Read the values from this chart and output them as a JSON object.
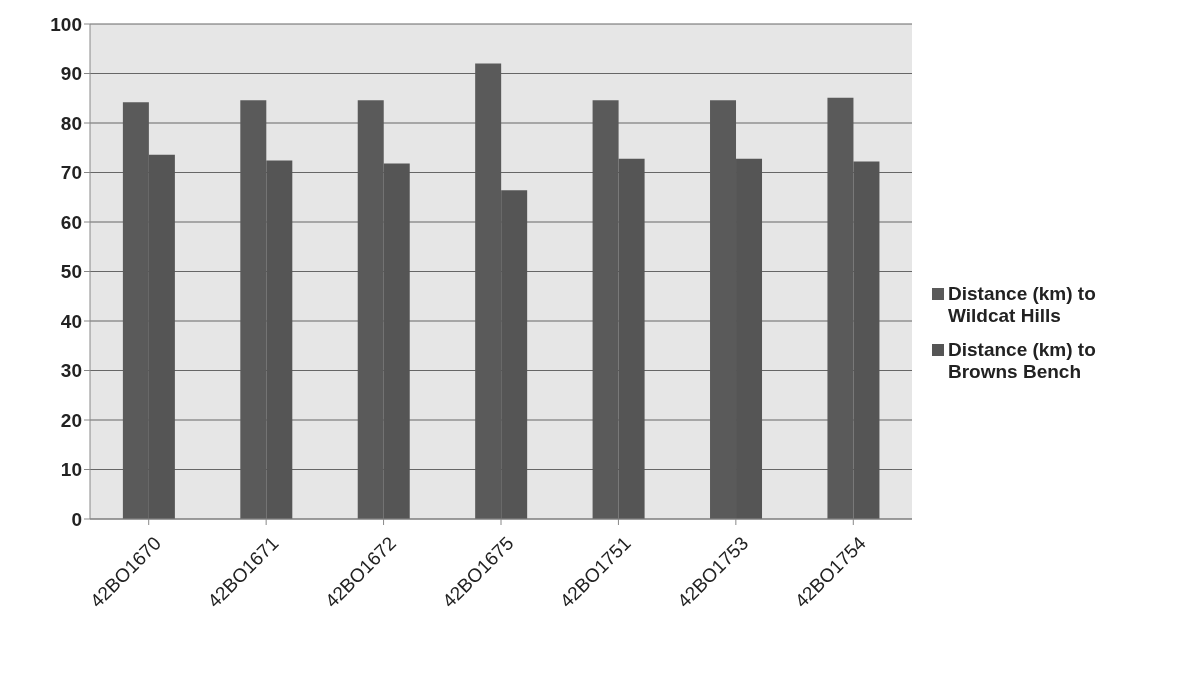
{
  "chart_data": {
    "type": "bar",
    "categories": [
      "42BO1670",
      "42BO1671",
      "42BO1672",
      "42BO1675",
      "42BO1751",
      "42BO1753",
      "42BO1754"
    ],
    "series": [
      {
        "name": "Distance (km) to Wildcat Hills",
        "color": "#5a5a5a",
        "values": [
          84.2,
          84.6,
          84.6,
          92,
          84.6,
          84.6,
          85.1
        ]
      },
      {
        "name": "Distance (km) to Browns Bench",
        "color": "#555555",
        "values": [
          73.6,
          72.4,
          71.8,
          66.4,
          72.8,
          72.8,
          72.2
        ]
      }
    ],
    "ylim": [
      0,
      100
    ],
    "yticks": [
      0,
      10,
      20,
      30,
      40,
      50,
      60,
      70,
      80,
      90,
      100
    ],
    "grid": "y",
    "legend": "right"
  }
}
